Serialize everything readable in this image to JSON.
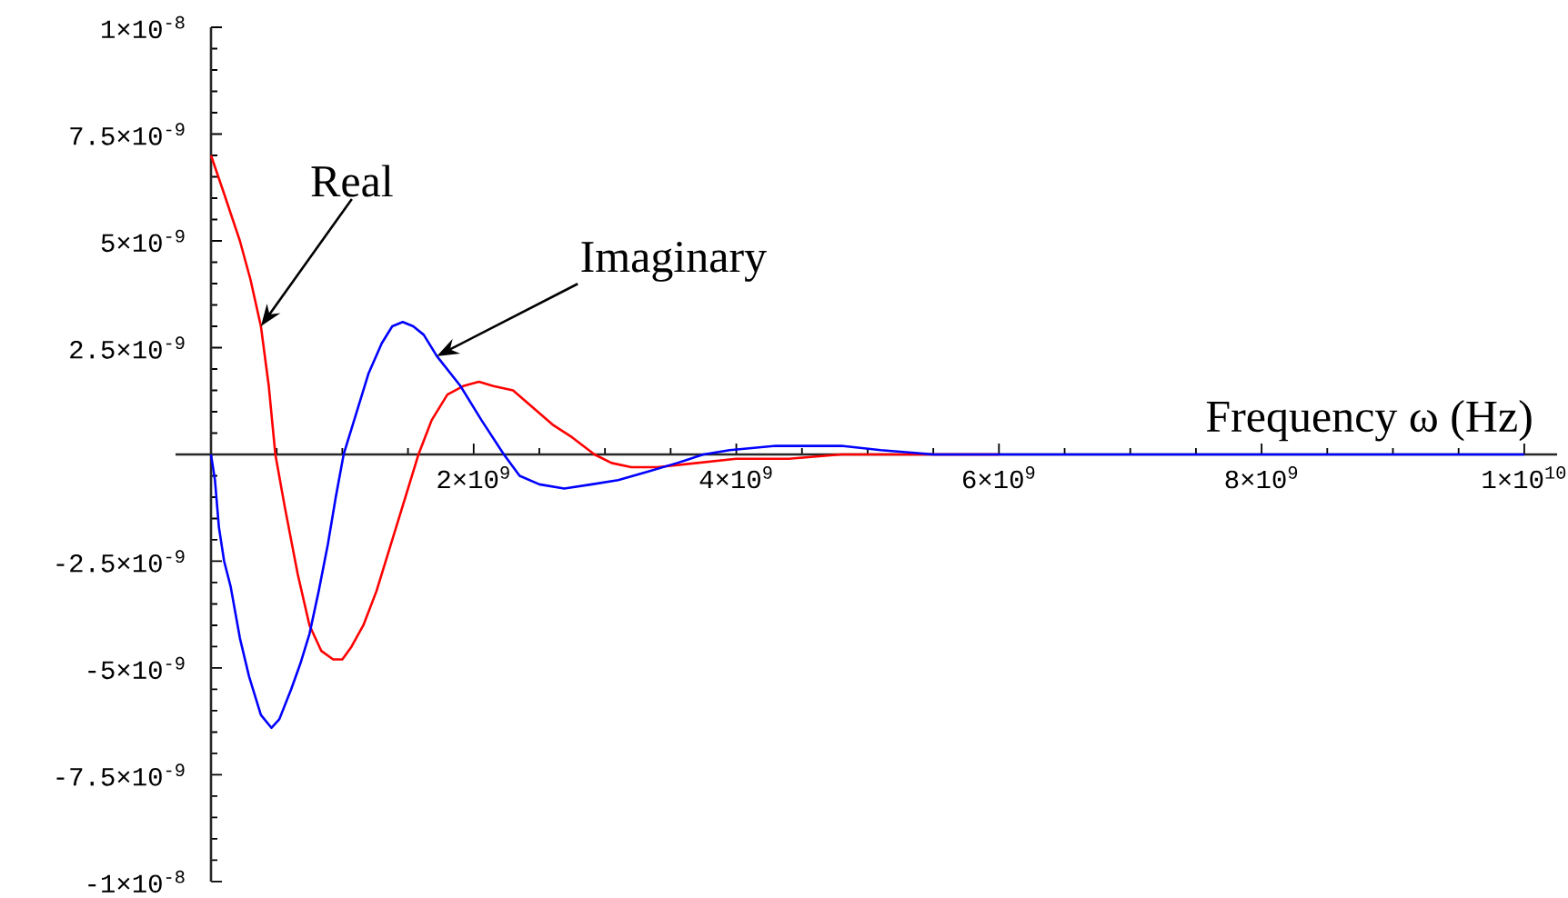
{
  "chart_data": {
    "type": "line",
    "xlabel": "Frequency ω (Hz)",
    "xlim": [
      -270000000.0,
      10250000000.0
    ],
    "ylim": [
      -1e-08,
      1e-08
    ],
    "xticks": [
      {
        "value": 500000000.0,
        "label": null
      },
      {
        "value": 1000000000.0,
        "label": null
      },
      {
        "value": 1500000000.0,
        "label": null
      },
      {
        "value": 2000000000.0,
        "label": "2×10$^{9}$"
      },
      {
        "value": 2500000000.0,
        "label": null
      },
      {
        "value": 3000000000.0,
        "label": null
      },
      {
        "value": 3500000000.0,
        "label": null
      },
      {
        "value": 4000000000.0,
        "label": "4×10$^{9}$"
      },
      {
        "value": 4500000000.0,
        "label": null
      },
      {
        "value": 5000000000.0,
        "label": null
      },
      {
        "value": 5500000000.0,
        "label": null
      },
      {
        "value": 6000000000.0,
        "label": "6×10$^{9}$"
      },
      {
        "value": 6500000000.0,
        "label": null
      },
      {
        "value": 7000000000.0,
        "label": null
      },
      {
        "value": 7500000000.0,
        "label": null
      },
      {
        "value": 8000000000.0,
        "label": "8×10$^{9}$"
      },
      {
        "value": 8500000000.0,
        "label": null
      },
      {
        "value": 9000000000.0,
        "label": null
      },
      {
        "value": 9500000000.0,
        "label": null
      },
      {
        "value": 10000000000.0,
        "label": "1×10$^{10}$"
      }
    ],
    "yticks": [
      {
        "value": -1e-08,
        "label": "-1×10$^{-8}$"
      },
      {
        "value": -9.5e-09,
        "label": null
      },
      {
        "value": -9e-09,
        "label": null
      },
      {
        "value": -8.5e-09,
        "label": null
      },
      {
        "value": -8e-09,
        "label": null
      },
      {
        "value": -7.5e-09,
        "label": "-7.5×10$^{-9}$"
      },
      {
        "value": -7e-09,
        "label": null
      },
      {
        "value": -6.5e-09,
        "label": null
      },
      {
        "value": -6e-09,
        "label": null
      },
      {
        "value": -5.5e-09,
        "label": null
      },
      {
        "value": -5e-09,
        "label": "-5×10$^{-9}$"
      },
      {
        "value": -4.5e-09,
        "label": null
      },
      {
        "value": -4e-09,
        "label": null
      },
      {
        "value": -3.5e-09,
        "label": null
      },
      {
        "value": -3e-09,
        "label": null
      },
      {
        "value": -2.5e-09,
        "label": "-2.5×10$^{-9}$"
      },
      {
        "value": -2e-09,
        "label": null
      },
      {
        "value": -1.5e-09,
        "label": null
      },
      {
        "value": -1e-09,
        "label": null
      },
      {
        "value": -5e-10,
        "label": null
      },
      {
        "value": 5e-10,
        "label": null
      },
      {
        "value": 1e-09,
        "label": null
      },
      {
        "value": 1.5e-09,
        "label": null
      },
      {
        "value": 2e-09,
        "label": null
      },
      {
        "value": 2.5e-09,
        "label": "2.5×10$^{-9}$"
      },
      {
        "value": 3e-09,
        "label": null
      },
      {
        "value": 3.5e-09,
        "label": null
      },
      {
        "value": 4e-09,
        "label": null
      },
      {
        "value": 4.5e-09,
        "label": null
      },
      {
        "value": 5e-09,
        "label": "5×10$^{-9}$"
      },
      {
        "value": 5.5e-09,
        "label": null
      },
      {
        "value": 6e-09,
        "label": null
      },
      {
        "value": 6.5e-09,
        "label": null
      },
      {
        "value": 7e-09,
        "label": null
      },
      {
        "value": 7.5e-09,
        "label": "7.5×10$^{-9}$"
      },
      {
        "value": 8e-09,
        "label": null
      },
      {
        "value": 8.5e-09,
        "label": null
      },
      {
        "value": 9e-09,
        "label": null
      },
      {
        "value": 9.5e-09,
        "label": null
      },
      {
        "value": 1e-08,
        "label": "1×10$^{-8}$"
      }
    ],
    "series": [
      {
        "name": "Real",
        "color": "#ff0000",
        "x": [
          0,
          100000000.0,
          220000000.0,
          300000000.0,
          380000000.0,
          440000000.0,
          490000000.0,
          560000000.0,
          660000000.0,
          750000000.0,
          840000000.0,
          930000000.0,
          1000000000.0,
          1070000000.0,
          1160000000.0,
          1260000000.0,
          1350000000.0,
          1440000000.0,
          1580000000.0,
          1680000000.0,
          1800000000.0,
          1920000000.0,
          2040000000.0,
          2150000000.0,
          2300000000.0,
          2450000000.0,
          2600000000.0,
          2750000000.0,
          2920000000.0,
          3050000000.0,
          3200000000.0,
          3400000000.0,
          3700000000.0,
          4000000000.0,
          4400000000.0,
          4800000000.0,
          5200000000.0,
          5600000000.0,
          6000000000.0
        ],
        "values": [
          7e-09,
          6.1e-09,
          5e-09,
          4.1e-09,
          3e-09,
          1.6e-09,
          0,
          -1.2e-09,
          -2.8e-09,
          -4e-09,
          -4.6e-09,
          -4.8e-09,
          -4.8e-09,
          -4.5e-09,
          -4e-09,
          -3.2e-09,
          -2.3e-09,
          -1.4e-09,
          0,
          8e-10,
          1.4e-09,
          1.6e-09,
          1.7e-09,
          1.6e-09,
          1.5e-09,
          1.1e-09,
          7e-10,
          4e-10,
          0,
          -2e-10,
          -3e-10,
          -3e-10,
          -2e-10,
          -1e-10,
          -1e-10,
          0,
          0,
          0,
          0
        ]
      },
      {
        "name": "Imaginary",
        "color": "#0000ff",
        "x": [
          0,
          30000000.0,
          60000000.0,
          100000000.0,
          150000000.0,
          220000000.0,
          290000000.0,
          380000000.0,
          460000000.0,
          520000000.0,
          610000000.0,
          680000000.0,
          750000000.0,
          820000000.0,
          890000000.0,
          950000000.0,
          1010000000.0,
          1100000000.0,
          1200000000.0,
          1300000000.0,
          1380000000.0,
          1460000000.0,
          1540000000.0,
          1620000000.0,
          1720000000.0,
          1900000000.0,
          2060000000.0,
          2230000000.0,
          2350000000.0,
          2500000000.0,
          2690000000.0,
          2900000000.0,
          3100000000.0,
          3330000000.0,
          3550000000.0,
          3750000000.0,
          3950000000.0,
          4300000000.0,
          4800000000.0,
          5100000000.0,
          5500000000.0,
          6000000000.0,
          8000000000.0,
          10000000000.0
        ],
        "values": [
          0,
          -6e-10,
          -1.7e-09,
          -2.5e-09,
          -3.1e-09,
          -4.3e-09,
          -5.2e-09,
          -6.1e-09,
          -6.4e-09,
          -6.2e-09,
          -5.5e-09,
          -4.9e-09,
          -4.2e-09,
          -3.2e-09,
          -2.1e-09,
          -1e-09,
          0,
          9e-10,
          1.9e-09,
          2.6e-09,
          3e-09,
          3.1e-09,
          3e-09,
          2.8e-09,
          2.3e-09,
          1.6e-09,
          8e-10,
          0,
          -5e-10,
          -7e-10,
          -8e-10,
          -7e-10,
          -6e-10,
          -4e-10,
          -2e-10,
          0,
          1e-10,
          2e-10,
          2e-10,
          1e-10,
          0,
          0,
          0,
          0
        ]
      }
    ]
  }
}
